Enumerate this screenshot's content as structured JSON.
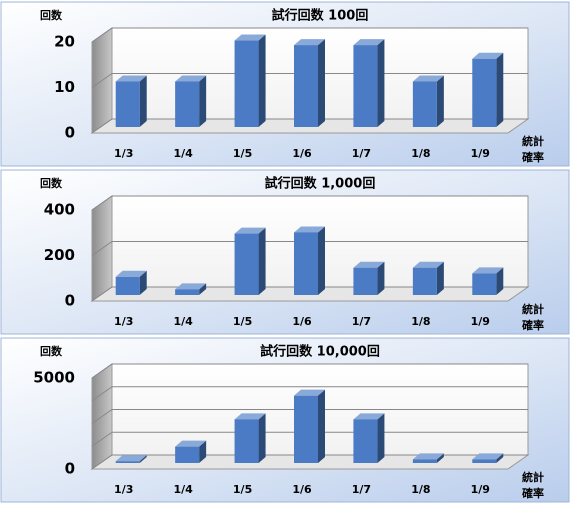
{
  "chart_data": [
    {
      "type": "bar3d",
      "title": "試行回数 100回",
      "ylabel": "回数",
      "xlabel": [
        "統計",
        "確率"
      ],
      "categories": [
        "1/3",
        "1/4",
        "1/5",
        "1/6",
        "1/7",
        "1/8",
        "1/9"
      ],
      "values": [
        10,
        10,
        19,
        18,
        18,
        10,
        15
      ],
      "color": "#4a7bc4",
      "ylim": [
        0,
        20
      ],
      "yticks": [
        0,
        10,
        20
      ],
      "grid": true
    },
    {
      "type": "bar3d",
      "title": "試行回数 1,000回",
      "ylabel": "回数",
      "xlabel": [
        "統計",
        "確率"
      ],
      "categories": [
        "1/3",
        "1/4",
        "1/5",
        "1/6",
        "1/7",
        "1/8",
        "1/9"
      ],
      "values": [
        80,
        25,
        270,
        275,
        120,
        120,
        95
      ],
      "color": "#4a7bc4",
      "ylim": [
        0,
        400
      ],
      "yticks": [
        0,
        200,
        400
      ],
      "grid": true
    },
    {
      "type": "bar3d",
      "title": "試行回数 10,000回",
      "ylabel": "回数",
      "xlabel": [
        "統計",
        "確率"
      ],
      "categories": [
        "1/3",
        "1/4",
        "1/5",
        "1/6",
        "1/7",
        "1/8",
        "1/9"
      ],
      "values": [
        100,
        900,
        2400,
        3700,
        2400,
        200,
        200
      ],
      "color": "#4a7bc4",
      "ylim": [
        0,
        5000
      ],
      "yticks": [
        0,
        5000
      ],
      "gridlines": [
        1250,
        2500,
        3750
      ],
      "grid": true
    }
  ]
}
